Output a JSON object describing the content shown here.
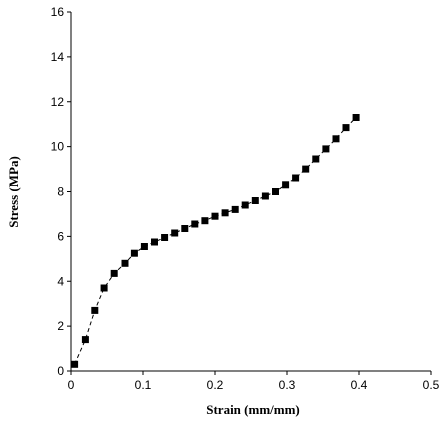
{
  "chart_data": {
    "type": "scatter",
    "title": "",
    "xlabel": "Strain (mm/mm)",
    "ylabel": "Stress (MPa)",
    "xlim": [
      0,
      0.5
    ],
    "ylim": [
      0,
      16
    ],
    "x_ticks": [
      "0",
      "0.1",
      "0.2",
      "0.3",
      "0.4",
      "0.5"
    ],
    "y_ticks": [
      "0",
      "2",
      "4",
      "6",
      "8",
      "10",
      "12",
      "14",
      "16"
    ],
    "grid": false,
    "legend": "none",
    "marker": "square",
    "marker_color": "#000000",
    "line_style": "dashed",
    "x": [
      0.005,
      0.02,
      0.033,
      0.046,
      0.06,
      0.075,
      0.088,
      0.102,
      0.116,
      0.13,
      0.144,
      0.158,
      0.172,
      0.186,
      0.2,
      0.214,
      0.228,
      0.242,
      0.256,
      0.27,
      0.284,
      0.298,
      0.312,
      0.326,
      0.34,
      0.354,
      0.368,
      0.382,
      0.396
    ],
    "y": [
      0.3,
      1.4,
      2.7,
      3.7,
      4.35,
      4.8,
      5.25,
      5.55,
      5.75,
      5.95,
      6.15,
      6.35,
      6.55,
      6.7,
      6.9,
      7.05,
      7.2,
      7.4,
      7.6,
      7.8,
      8.0,
      8.3,
      8.6,
      9.0,
      9.45,
      9.9,
      10.35,
      10.85,
      11.3
    ]
  }
}
